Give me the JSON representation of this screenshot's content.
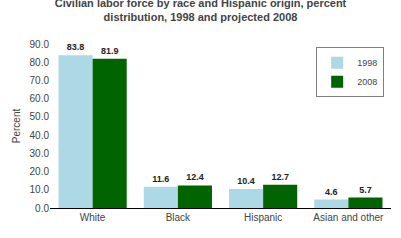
{
  "chart_data": {
    "type": "bar",
    "title": "Civilian labor force by race and Hispanic origin, percent\ndistribution, 1998 and projected 2008",
    "ylabel": "Percent",
    "categories": [
      "White",
      "Black",
      "Hispanic",
      "Asian and other"
    ],
    "series": [
      {
        "name": "1998",
        "color": "#add8e6",
        "values": [
          83.8,
          11.6,
          10.4,
          4.6
        ]
      },
      {
        "name": "2008",
        "color": "#006400",
        "values": [
          81.9,
          12.4,
          12.7,
          5.7
        ]
      }
    ],
    "ylim": [
      0,
      90
    ],
    "yticks": [
      {
        "value": 0,
        "label": "0.0"
      },
      {
        "value": 10,
        "label": "10.0"
      },
      {
        "value": 20,
        "label": "20.0"
      },
      {
        "value": 30,
        "label": "30.0"
      },
      {
        "value": 40,
        "label": "40.0"
      },
      {
        "value": 50,
        "label": "50.0"
      },
      {
        "value": 60,
        "label": "60.0"
      },
      {
        "value": 70,
        "label": "70.0"
      },
      {
        "value": 80,
        "label": "80.0"
      },
      {
        "value": 90,
        "label": "90.0"
      }
    ],
    "data_labels": true,
    "legend": "upper right",
    "grid": false
  }
}
